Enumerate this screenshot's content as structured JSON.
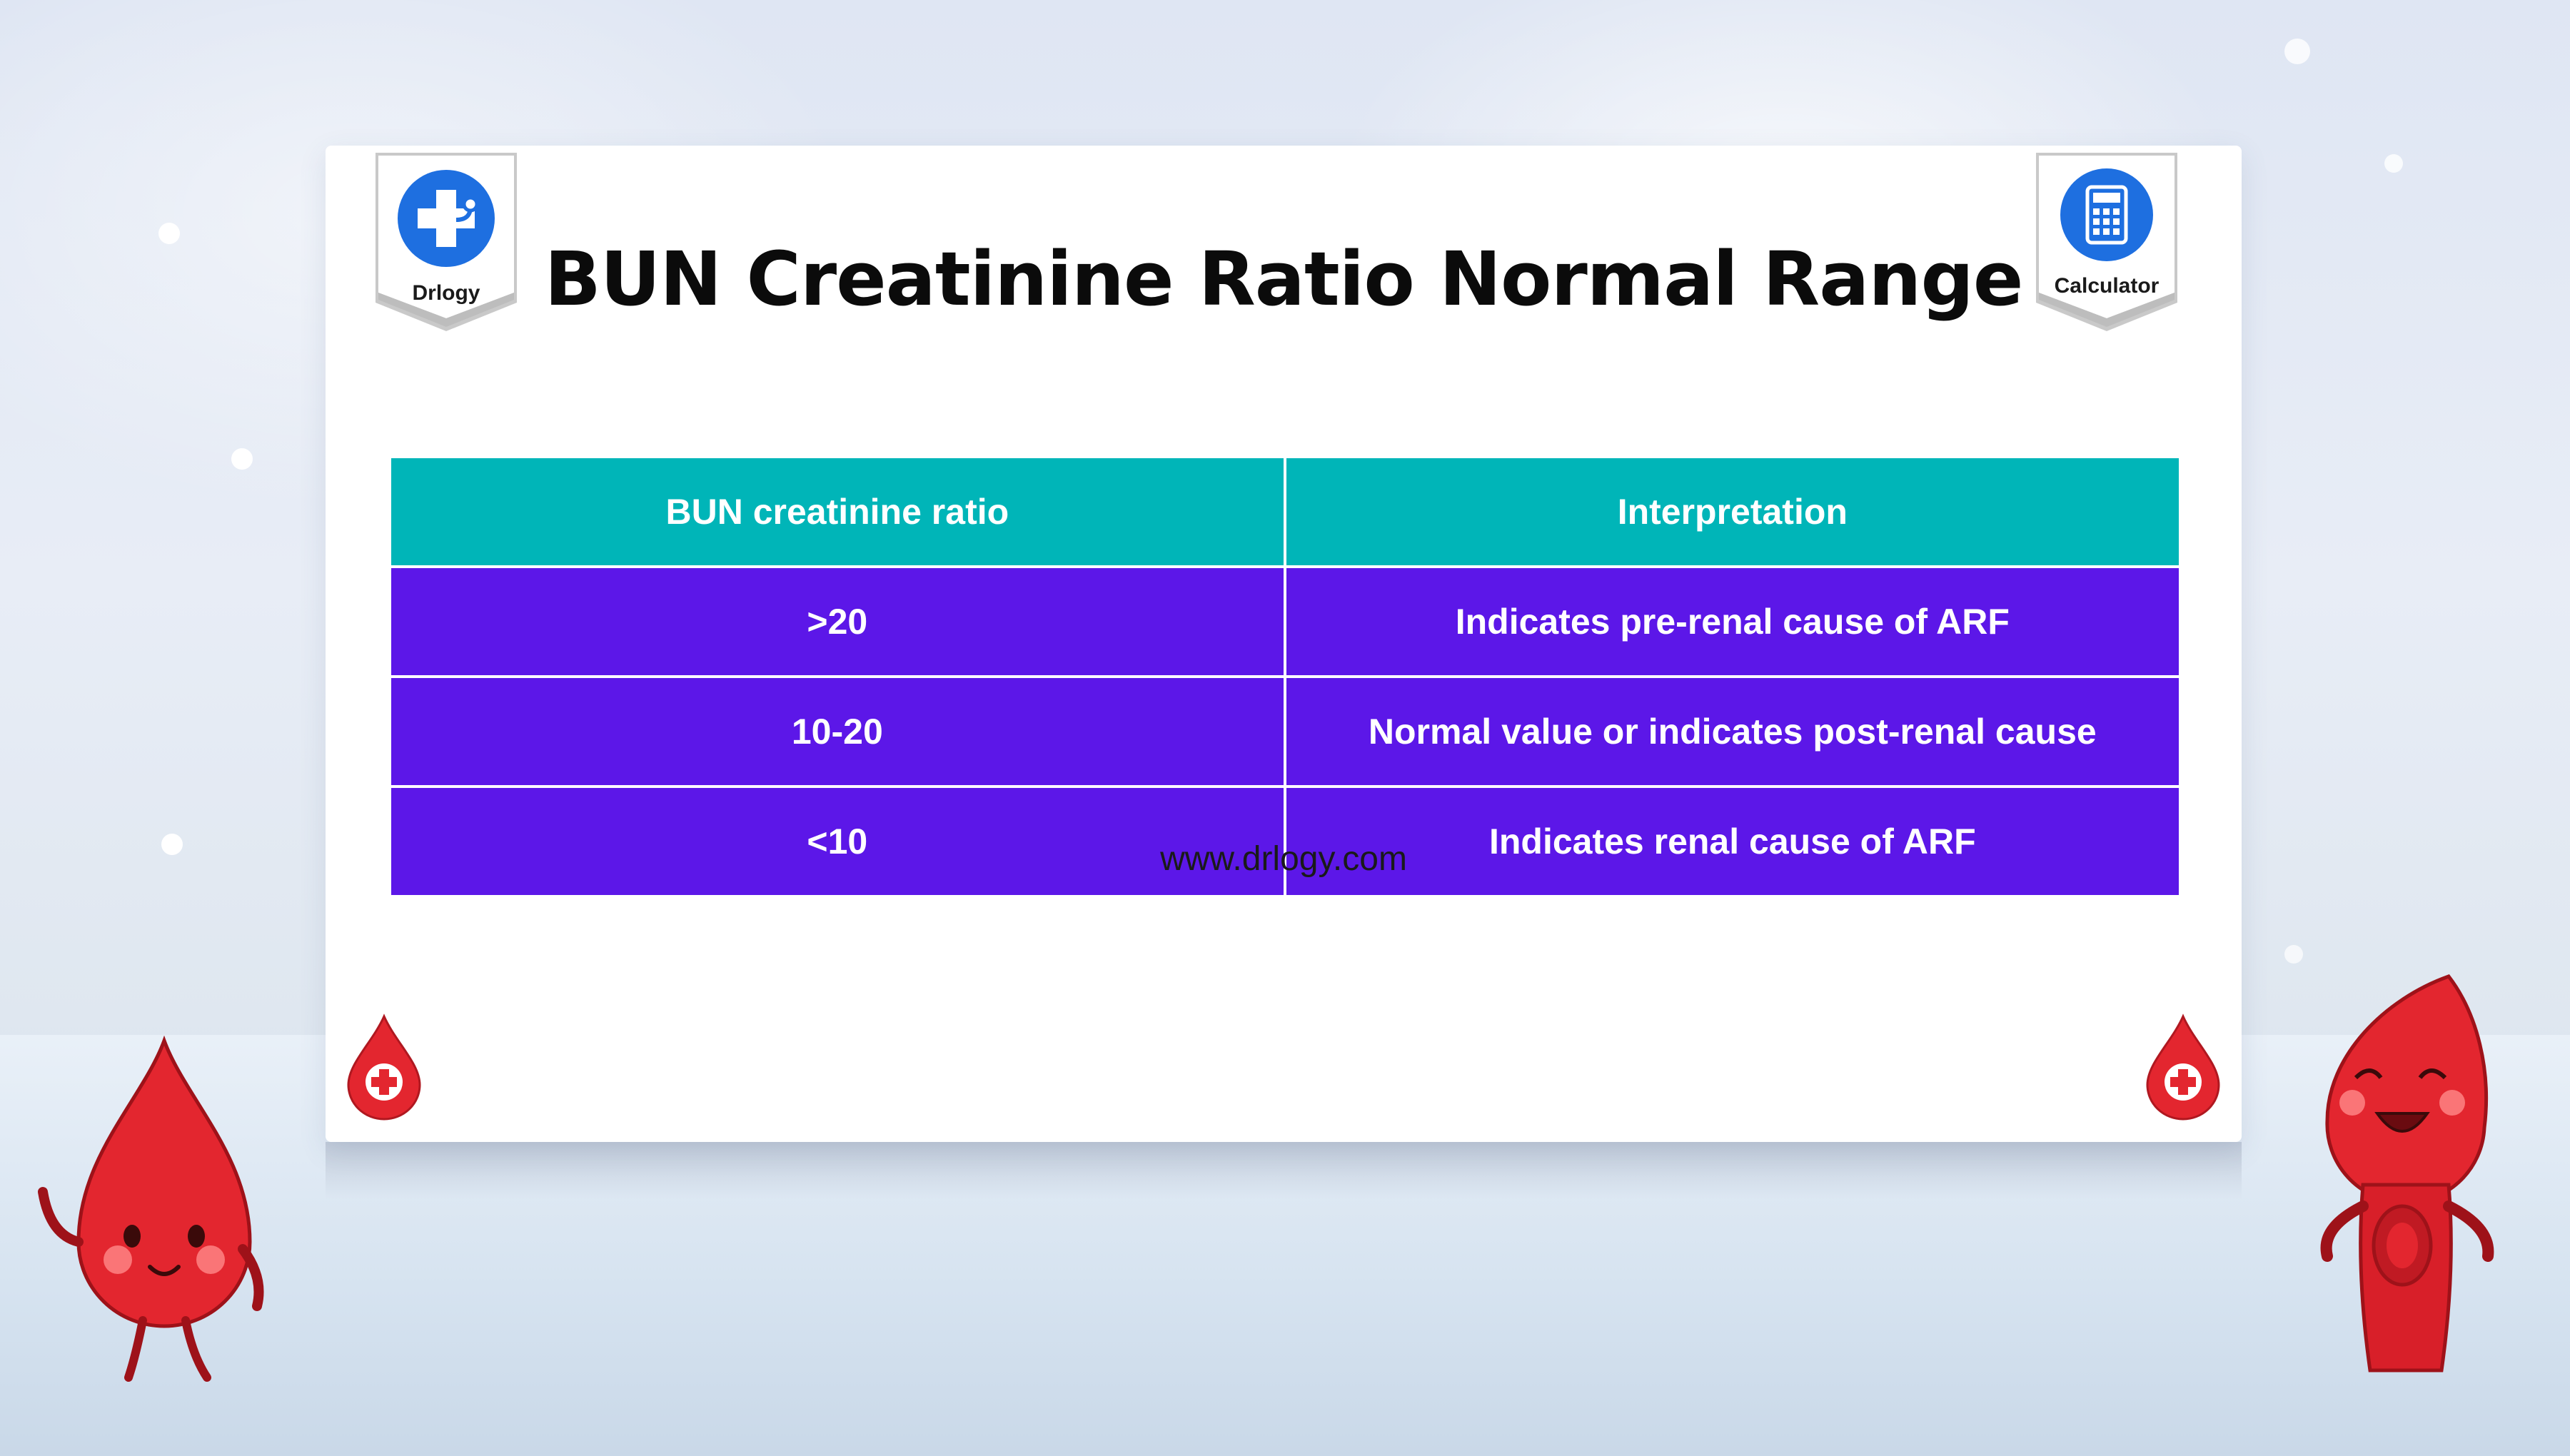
{
  "header": {
    "title": "BUN Creatinine Ratio Normal Range",
    "left_badge": {
      "label": "Drlogy",
      "icon": "stethoscope-cross-icon",
      "color": "#1e6fe0"
    },
    "right_badge": {
      "label": "Calculator",
      "icon": "calculator-icon",
      "color": "#1e6fe0"
    }
  },
  "table": {
    "columns": [
      "BUN creatinine ratio",
      "Interpretation"
    ],
    "rows": [
      [
        ">20",
        "Indicates pre-renal cause of ARF"
      ],
      [
        "10-20",
        "Normal value or indicates post-renal cause"
      ],
      [
        "<10",
        "Indicates renal cause of ARF"
      ]
    ],
    "header_color": "#00b5b8",
    "row_color": "#5c17e8"
  },
  "footer": {
    "url": "www.drlogy.com"
  },
  "decorations": {
    "left_icon": "blood-drop-plus-icon",
    "right_icon": "blood-drop-plus-icon",
    "left_mascot": "blood-drop-mascot",
    "right_mascot": "blood-character-mascot",
    "accent": "#e3262f"
  }
}
